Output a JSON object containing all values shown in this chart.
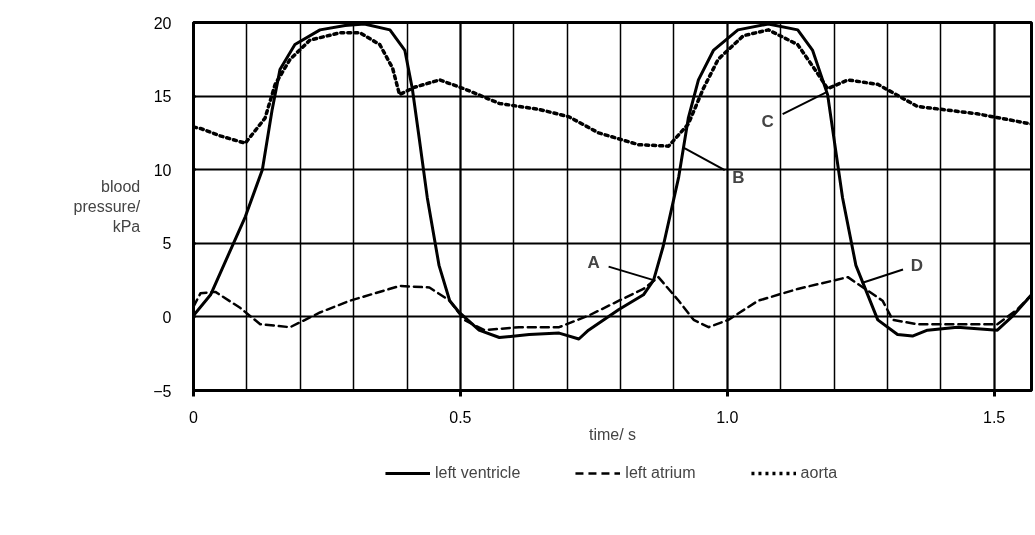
{
  "chart_data": {
    "type": "line",
    "xlabel": "time/ s",
    "ylabel": "blood pressure/ kPa",
    "xlim": [
      0,
      1.57
    ],
    "ylim": [
      -5,
      20
    ],
    "xticks": [
      0,
      0.5,
      {
        "value": 1.0,
        "label": "1.0"
      },
      1.5
    ],
    "yticks": [
      -5,
      0,
      5,
      10,
      15,
      20
    ],
    "grid": true,
    "legend": "bottom",
    "marker": "none",
    "annotations": [
      {
        "text": "A",
        "x": 0.862,
        "y": 2.5
      },
      {
        "text": "B",
        "x": 0.918,
        "y": 11.5
      },
      {
        "text": "C",
        "x": 1.188,
        "y": 15.3
      },
      {
        "text": "D",
        "x": 1.252,
        "y": 2.3
      }
    ],
    "series": [
      {
        "name": "left ventricle",
        "color": "#000000",
        "line_style": "solid",
        "x": [
          0,
          0.032,
          0.097,
          0.129,
          0.147,
          0.162,
          0.19,
          0.237,
          0.284,
          0.32,
          0.368,
          0.396,
          0.41,
          0.423,
          0.438,
          0.46,
          0.48,
          0.498,
          0.535,
          0.573,
          0.629,
          0.685,
          0.722,
          0.74,
          0.797,
          0.843,
          0.862,
          0.88,
          0.909,
          0.927,
          0.946,
          0.974,
          1.02,
          1.077,
          1.132,
          1.16,
          1.188,
          1.216,
          1.241,
          1.282,
          1.319,
          1.347,
          1.375,
          1.431,
          1.506,
          1.533,
          1.57
        ],
        "values": [
          0.1,
          1.5,
          6.8,
          10,
          14,
          16.8,
          18.5,
          19.5,
          19.8,
          19.9,
          19.5,
          18.1,
          15.5,
          12.1,
          8.1,
          3.5,
          1.1,
          0.3,
          -0.9,
          -1.4,
          -1.2,
          -1.1,
          -1.5,
          -0.9,
          0.5,
          1.5,
          2.5,
          4.8,
          9.5,
          13.5,
          16.1,
          18.1,
          19.5,
          19.9,
          19.5,
          18.1,
          15.1,
          8.1,
          3.5,
          -0.2,
          -1.2,
          -1.3,
          -0.9,
          -0.7,
          -0.9,
          0,
          1.5
        ]
      },
      {
        "name": "left atrium",
        "color": "#000000",
        "line_style": "dashed",
        "x": [
          0,
          0.013,
          0.041,
          0.088,
          0.125,
          0.181,
          0.237,
          0.293,
          0.386,
          0.442,
          0.48,
          0.507,
          0.545,
          0.61,
          0.685,
          0.741,
          0.797,
          0.843,
          0.871,
          0.909,
          0.937,
          0.965,
          1.002,
          1.058,
          1.132,
          1.226,
          1.291,
          1.31,
          1.356,
          1.431,
          1.506,
          1.543,
          1.57
        ],
        "values": [
          0.7,
          1.6,
          1.7,
          0.6,
          -0.5,
          -0.7,
          0.3,
          1.1,
          2.1,
          2,
          1.1,
          -0.2,
          -0.9,
          -0.7,
          -0.7,
          0.1,
          1.1,
          1.9,
          2.7,
          1.1,
          -0.2,
          -0.7,
          -0.2,
          1.1,
          1.9,
          2.7,
          1.1,
          -0.2,
          -0.5,
          -0.5,
          -0.5,
          0.5,
          1.5
        ]
      },
      {
        "name": "aorta",
        "color": "#000000",
        "line_style": "dotted",
        "x": [
          0,
          0.013,
          0.05,
          0.097,
          0.134,
          0.153,
          0.181,
          0.218,
          0.274,
          0.312,
          0.349,
          0.373,
          0.386,
          0.414,
          0.461,
          0.507,
          0.573,
          0.647,
          0.703,
          0.759,
          0.834,
          0.89,
          0.927,
          0.955,
          0.983,
          1.03,
          1.077,
          1.132,
          1.17,
          1.188,
          1.226,
          1.282,
          1.356,
          1.468,
          1.57
        ],
        "values": [
          12.9,
          12.8,
          12.3,
          11.8,
          13.5,
          15.8,
          17.5,
          18.8,
          19.3,
          19.3,
          18.5,
          16.9,
          15.1,
          15.6,
          16.1,
          15.5,
          14.5,
          14.1,
          13.6,
          12.5,
          11.7,
          11.6,
          13.1,
          15.5,
          17.5,
          19.1,
          19.5,
          18.5,
          16.5,
          15.5,
          16.1,
          15.8,
          14.3,
          13.8,
          13.1
        ]
      }
    ]
  }
}
